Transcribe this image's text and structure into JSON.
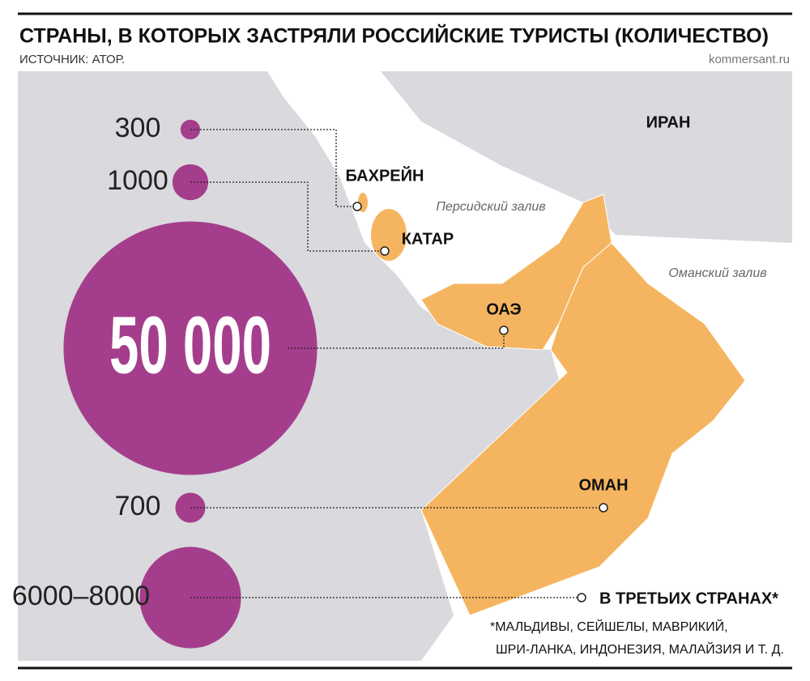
{
  "header": {
    "title": "СТРАНЫ, В КОТОРЫХ ЗАСТРЯЛИ РОССИЙСКИЕ ТУРИСТЫ (КОЛИЧЕСТВО)",
    "source": "ИСТОЧНИК: АТОР.",
    "site": "kommersant.ru"
  },
  "bubbles": [
    {
      "label": "300",
      "value": 300,
      "country": "БАХРЕЙН"
    },
    {
      "label": "1000",
      "value": 1000,
      "country": "КАТАР"
    },
    {
      "label": "50 000",
      "value": 50000,
      "country": "ОАЭ"
    },
    {
      "label": "700",
      "value": 700,
      "country": "ОМАН"
    },
    {
      "label": "6000–8000",
      "range": [
        6000,
        8000
      ],
      "country": "В ТРЕТЬИХ СТРАНАХ*"
    }
  ],
  "map_labels": {
    "iran": "ИРАН",
    "persian_gulf": "Персидский залив",
    "gulf_of_oman": "Оманский залив"
  },
  "footnote": [
    "*МАЛЬДИВЫ, СЕЙШЕЛЫ, МАВРИКИЙ,",
    "ШРИ-ЛАНКА, ИНДОНЕЗИЯ, МАЛАЙЗИЯ И Т. Д."
  ]
}
